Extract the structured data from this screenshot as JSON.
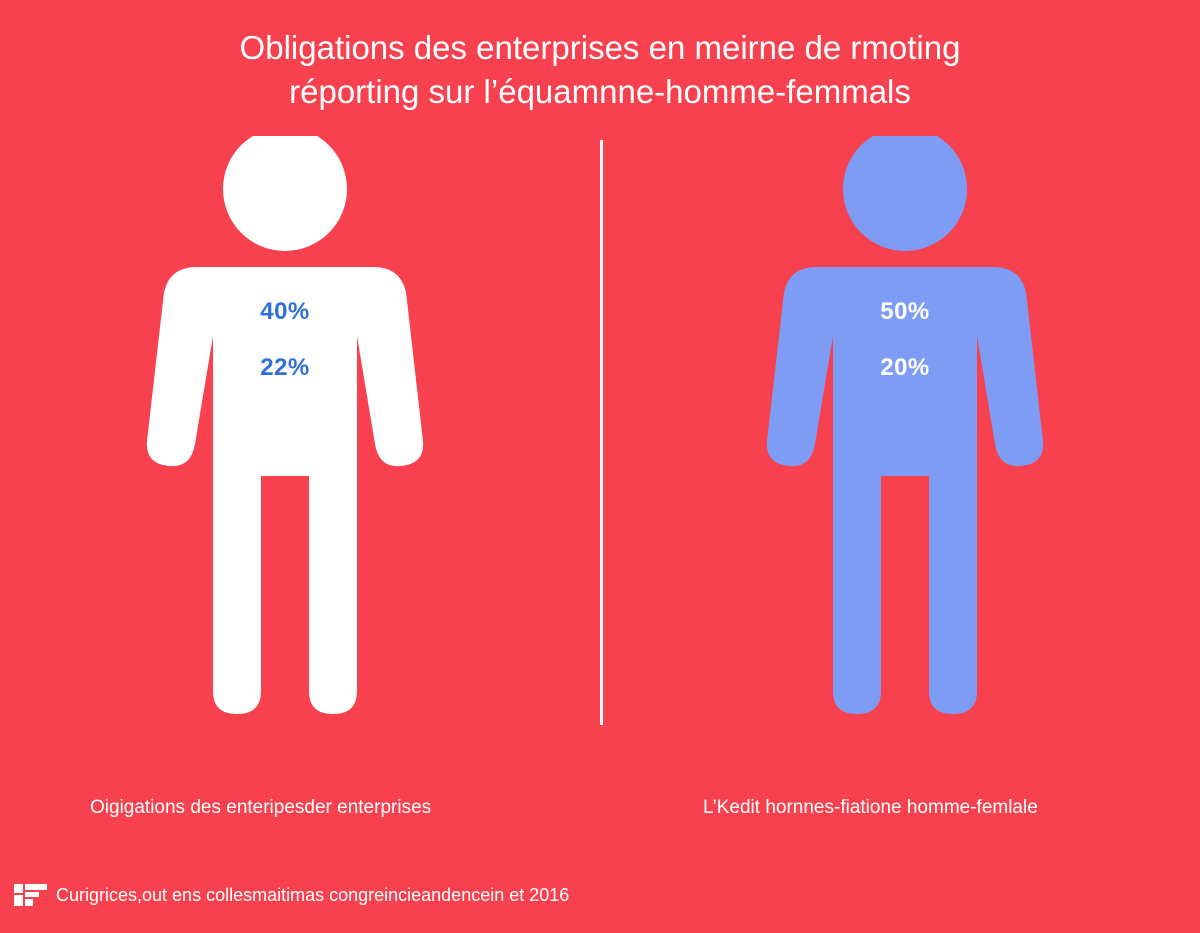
{
  "title": {
    "line1": "Obligations des enterprises en meirne de rmoting",
    "line2": "réporting sur l’équamnne-homme-femmals"
  },
  "left_figure": {
    "stat1": "40%",
    "stat2": "22%",
    "caption": "Oigigations des enteripesder enterprises",
    "color": "#ffffff"
  },
  "right_figure": {
    "stat1": "50%",
    "stat2": "20%",
    "caption": "L’Kedit hornnes-fiatione homme-femlale",
    "color": "#7f9cf5"
  },
  "footer": {
    "text": "Curigrices,out ens collesmaitimas congreincieandencein et 2016",
    "logo": "logo-icon"
  },
  "colors": {
    "background": "#f7414f",
    "left_stat_text": "#2f6fd8",
    "right_stat_text": "#ffffff"
  }
}
